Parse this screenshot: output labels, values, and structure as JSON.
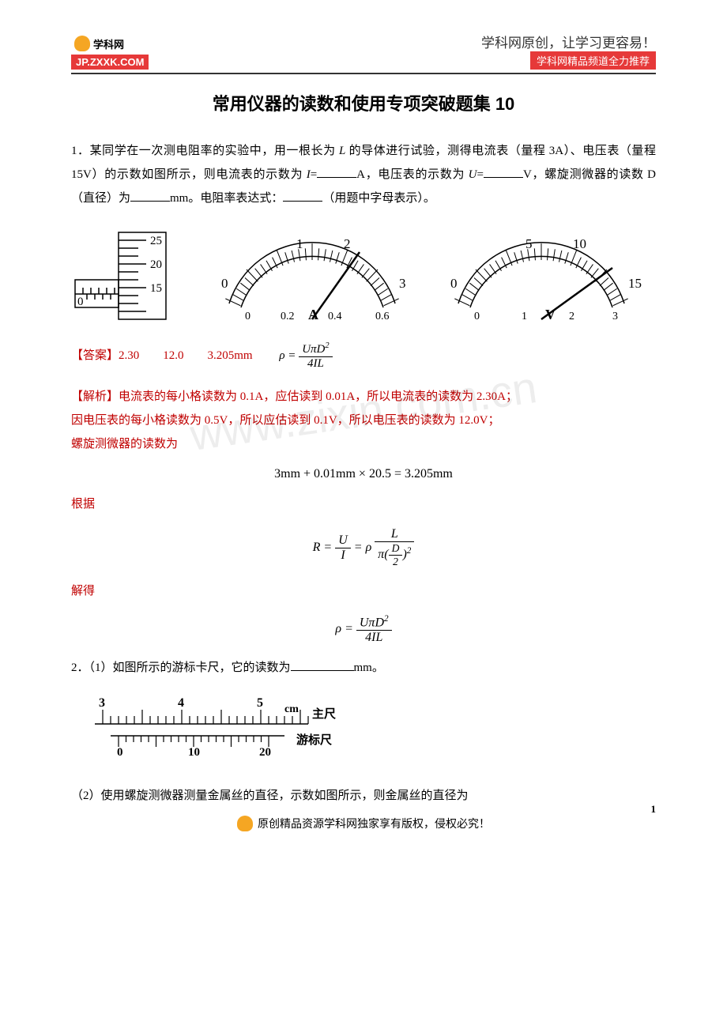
{
  "header": {
    "logo_text": "学科网",
    "logo_url": "JP.ZXXK.COM",
    "slogan_top": "学科网原创，让学习更容易！",
    "slogan_bottom": "学科网精品频道全力推荐"
  },
  "title": "常用仪器的读数和使用专项突破题集  10",
  "q1": {
    "intro_a": "1．某同学在一次测电阻率的实验中，用一根长为 ",
    "intro_L": "L",
    "intro_b": " 的导体进行试验，测得电流表（量程 3A）、电压表（量程 15V）的示数如图所示，则电流表的示数为 ",
    "intro_I": "I",
    "intro_c": "A，电压表的示数为 ",
    "intro_U": "U",
    "intro_d": "V，螺旋测微器的读数 D（直径）为",
    "intro_e": "mm。电阻率表达式：",
    "intro_f": "（用题中字母表示）。",
    "answer_label": "【答案】",
    "answer_vals": "2.30　　12.0　　3.205mm",
    "formula_rho_num": "UπD",
    "formula_rho_num_sup": "2",
    "formula_rho_den": "4IL",
    "explain_label": "【解析】",
    "explain_1": "电流表的每小格读数为 0.1A，应估读到 0.01A，所以电流表的读数为 2.30A；",
    "explain_2": "因电压表的每小格读数为 0.5V，所以应估读到 0.1V，所以电压表的读数为 12.0V；",
    "explain_3": "螺旋测微器的读数为",
    "calc": "3mm + 0.01mm × 20.5 = 3.205mm",
    "genju": "根据",
    "formula_R": "R",
    "formula_eq": " = ",
    "formula_UI_num": "U",
    "formula_UI_den": "I",
    "formula_rho_sym": "ρ",
    "formula_L": "L",
    "formula_piD2_a": "π(",
    "formula_piD2_b": "D",
    "formula_piD2_c": "2",
    "formula_piD2_d": ")",
    "formula_piD2_sup": "2",
    "jiede": "解得"
  },
  "q2": {
    "part1": "2．（1）如图所示的游标卡尺，它的读数为",
    "unit1": "mm。",
    "caliper": {
      "main_marks": [
        "3",
        "4",
        "5"
      ],
      "main_unit": "cm",
      "main_label": "主尺",
      "vernier_marks": [
        "0",
        "10",
        "20"
      ],
      "vernier_label": "游标尺"
    },
    "part2": "（2）使用螺旋测微器测量金属丝的直径，示数如图所示，则金属丝的直径为"
  },
  "footer": {
    "text": "原创精品资源学科网独家享有版权，侵权必究！",
    "page": "1"
  },
  "diagrams": {
    "micrometer": {
      "thimble_marks": [
        "25",
        "20",
        "15"
      ],
      "sleeve_mark": "0",
      "colors": {
        "stroke": "#000000",
        "bg": "#ffffff"
      }
    },
    "ammeter": {
      "top_labels": [
        "1",
        "2"
      ],
      "left_label": "0",
      "right_label": "3",
      "bottom_labels": [
        "0",
        "0.2",
        "0.4",
        "0.6"
      ],
      "unit": "A",
      "needle_angle_deg": 60
    },
    "voltmeter": {
      "top_labels": [
        "5",
        "10"
      ],
      "left_label": "0",
      "right_label": "15",
      "bottom_labels": [
        "0",
        "1",
        "2",
        "3"
      ],
      "unit": "V",
      "needle_angle_deg": 130
    }
  },
  "watermark": "www.zixin.com.cn"
}
